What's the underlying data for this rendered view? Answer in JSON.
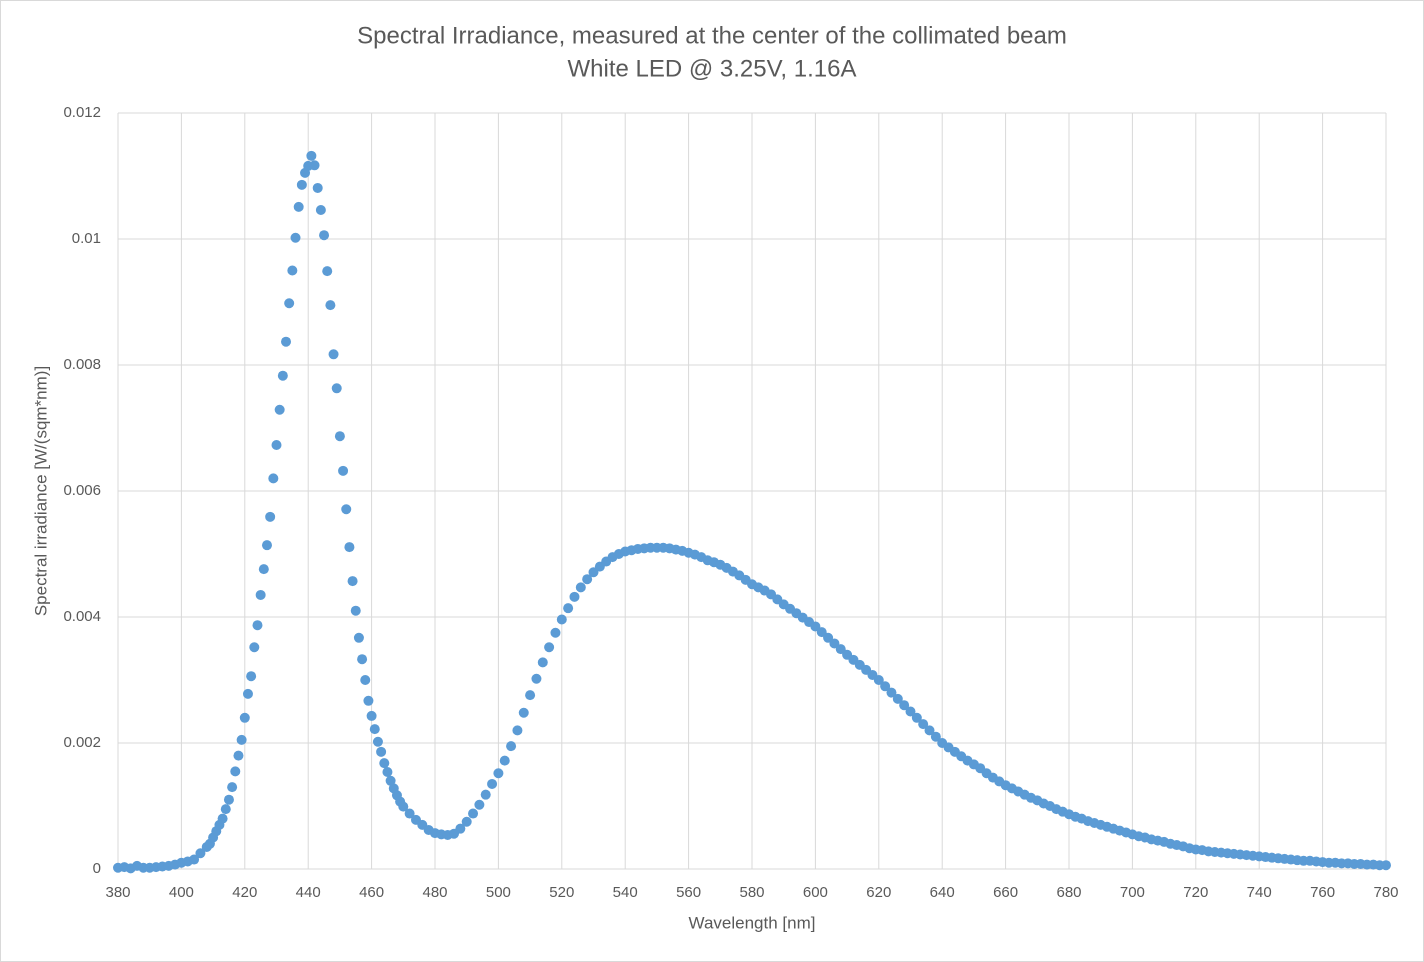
{
  "chart_data": {
    "type": "scatter",
    "title": "Spectral Irradiance, measured at the center of the collimated beam",
    "subtitle": "White LED @ 3.25V, 1.16A",
    "xlabel": "Wavelength [nm]",
    "ylabel": "Spectral irradiance [W/(sqm*nm)]",
    "color": "#5b9bd5",
    "grid": true,
    "xlim": [
      380,
      780
    ],
    "xticks": [
      380,
      400,
      420,
      440,
      460,
      480,
      500,
      520,
      540,
      560,
      580,
      600,
      620,
      640,
      660,
      680,
      700,
      720,
      740,
      760,
      780
    ],
    "ylim": [
      0,
      0.012
    ],
    "yticks": [
      0,
      0.002,
      0.004,
      0.006,
      0.008,
      0.01,
      0.012
    ],
    "x": [
      380,
      382,
      384,
      386,
      388,
      390,
      392,
      394,
      396,
      398,
      400,
      402,
      404,
      406,
      408,
      409,
      410,
      411,
      412,
      413,
      414,
      415,
      416,
      417,
      418,
      419,
      420,
      421,
      422,
      423,
      424,
      425,
      426,
      427,
      428,
      429,
      430,
      431,
      432,
      433,
      434,
      435,
      436,
      437,
      438,
      439,
      440,
      441,
      442,
      443,
      444,
      445,
      446,
      447,
      448,
      449,
      450,
      451,
      452,
      453,
      454,
      455,
      456,
      457,
      458,
      459,
      460,
      461,
      462,
      463,
      464,
      465,
      466,
      467,
      468,
      469,
      470,
      472,
      474,
      476,
      478,
      480,
      482,
      484,
      486,
      488,
      490,
      492,
      494,
      496,
      498,
      500,
      502,
      504,
      506,
      508,
      510,
      512,
      514,
      516,
      518,
      520,
      522,
      524,
      526,
      528,
      530,
      532,
      534,
      536,
      538,
      540,
      542,
      544,
      546,
      548,
      550,
      552,
      554,
      556,
      558,
      560,
      562,
      564,
      566,
      568,
      570,
      572,
      574,
      576,
      578,
      580,
      582,
      584,
      586,
      588,
      590,
      592,
      594,
      596,
      598,
      600,
      602,
      604,
      606,
      608,
      610,
      612,
      614,
      616,
      618,
      620,
      622,
      624,
      626,
      628,
      630,
      632,
      634,
      636,
      638,
      640,
      642,
      644,
      646,
      648,
      650,
      652,
      654,
      656,
      658,
      660,
      662,
      664,
      666,
      668,
      670,
      672,
      674,
      676,
      678,
      680,
      682,
      684,
      686,
      688,
      690,
      692,
      694,
      696,
      698,
      700,
      702,
      704,
      706,
      708,
      710,
      712,
      714,
      716,
      718,
      720,
      722,
      724,
      726,
      728,
      730,
      732,
      734,
      736,
      738,
      740,
      742,
      744,
      746,
      748,
      750,
      752,
      754,
      756,
      758,
      760,
      762,
      764,
      766,
      768,
      770,
      772,
      774,
      776,
      778,
      780
    ],
    "values": [
      2e-05,
      3e-05,
      1e-05,
      5e-05,
      2e-05,
      2e-05,
      3e-05,
      4e-05,
      5e-05,
      7e-05,
      0.0001,
      0.00012,
      0.00015,
      0.00025,
      0.00035,
      0.0004,
      0.0005,
      0.0006,
      0.0007,
      0.0008,
      0.00095,
      0.0011,
      0.0013,
      0.00155,
      0.0018,
      0.00205,
      0.0024,
      0.00278,
      0.00306,
      0.00352,
      0.00387,
      0.00435,
      0.00476,
      0.00514,
      0.00559,
      0.0062,
      0.00673,
      0.00729,
      0.00783,
      0.00837,
      0.00898,
      0.0095,
      0.01002,
      0.01051,
      0.01086,
      0.01105,
      0.01116,
      0.01132,
      0.01117,
      0.01081,
      0.01046,
      0.01006,
      0.00949,
      0.00895,
      0.00817,
      0.00763,
      0.00687,
      0.00632,
      0.00571,
      0.00511,
      0.00457,
      0.0041,
      0.00367,
      0.00333,
      0.003,
      0.00267,
      0.00243,
      0.00222,
      0.00202,
      0.00186,
      0.00168,
      0.00154,
      0.0014,
      0.00128,
      0.00117,
      0.00107,
      0.00099,
      0.00088,
      0.00078,
      0.0007,
      0.00062,
      0.00057,
      0.00055,
      0.00054,
      0.00056,
      0.00064,
      0.00075,
      0.00088,
      0.00102,
      0.00118,
      0.00135,
      0.00152,
      0.00172,
      0.00195,
      0.0022,
      0.00248,
      0.00276,
      0.00302,
      0.00328,
      0.00352,
      0.00375,
      0.00396,
      0.00414,
      0.00432,
      0.00447,
      0.0046,
      0.00471,
      0.0048,
      0.00488,
      0.00495,
      0.005,
      0.00504,
      0.00506,
      0.00508,
      0.00509,
      0.0051,
      0.0051,
      0.0051,
      0.00509,
      0.00507,
      0.00505,
      0.00502,
      0.00499,
      0.00495,
      0.0049,
      0.00487,
      0.00483,
      0.00478,
      0.00472,
      0.00466,
      0.00459,
      0.00452,
      0.00447,
      0.00442,
      0.00436,
      0.00428,
      0.0042,
      0.00413,
      0.00406,
      0.00399,
      0.00392,
      0.00385,
      0.00376,
      0.00367,
      0.00358,
      0.00349,
      0.0034,
      0.00332,
      0.00324,
      0.00316,
      0.00308,
      0.003,
      0.0029,
      0.0028,
      0.0027,
      0.0026,
      0.0025,
      0.0024,
      0.0023,
      0.0022,
      0.0021,
      0.002,
      0.00193,
      0.00186,
      0.00179,
      0.00172,
      0.00166,
      0.0016,
      0.00152,
      0.00145,
      0.00139,
      0.00133,
      0.00128,
      0.00123,
      0.00118,
      0.00113,
      0.00109,
      0.00104,
      0.001,
      0.00095,
      0.00091,
      0.00087,
      0.00083,
      0.0008,
      0.00076,
      0.00073,
      0.0007,
      0.00067,
      0.00064,
      0.00061,
      0.00058,
      0.00055,
      0.00052,
      0.0005,
      0.00047,
      0.00045,
      0.00043,
      0.0004,
      0.00038,
      0.00036,
      0.00033,
      0.00031,
      0.0003,
      0.00028,
      0.00027,
      0.00026,
      0.00025,
      0.00024,
      0.00023,
      0.00022,
      0.00021,
      0.0002,
      0.00019,
      0.00018,
      0.00017,
      0.00016,
      0.00015,
      0.00014,
      0.00013,
      0.00013,
      0.00012,
      0.00011,
      0.0001,
      0.0001,
      9e-05,
      9e-05,
      8e-05,
      8e-05,
      7e-05,
      7e-05,
      6e-05,
      6e-05
    ]
  }
}
